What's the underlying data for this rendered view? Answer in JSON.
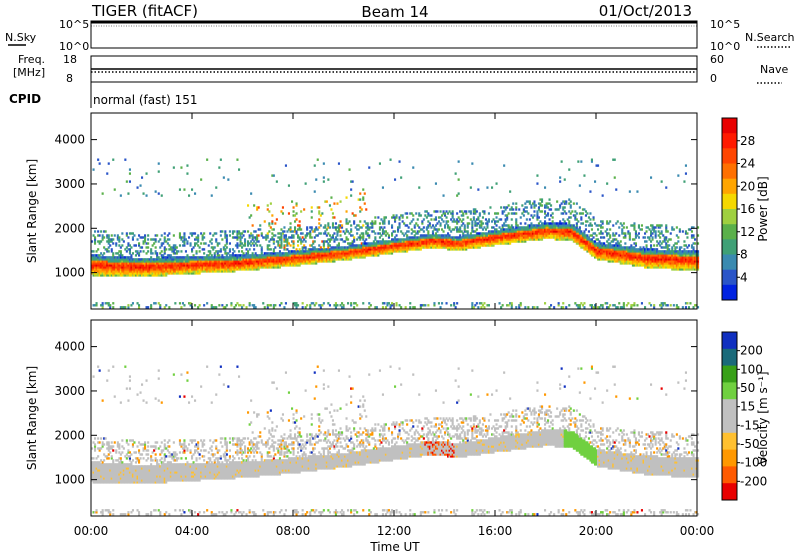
{
  "header": {
    "title": "TIGER (fitACF)",
    "beam": "Beam 14",
    "date": "01/Oct/2013"
  },
  "params": {
    "nsky_label": "N.Sky",
    "nsearch_label": "N.Search",
    "noise_ticks": [
      "10^5",
      "10^0"
    ],
    "freq_label_1": "Freq.",
    "freq_label_2": "[MHz]",
    "freq_ticks": [
      "18",
      "8"
    ],
    "nave_label": "Nave",
    "nave_ticks": [
      "60",
      "0"
    ],
    "cpid_label": "CPID",
    "cpid_value": "normal (fast) 151"
  },
  "colors": {
    "power_scale": [
      "#0022e0",
      "#2a55c8",
      "#3a8ab0",
      "#3fa076",
      "#5ab04a",
      "#9fd040",
      "#f5d800",
      "#ffa500",
      "#ff7000",
      "#ff4500",
      "#ff1a00",
      "#e80000"
    ],
    "velocity_scale": [
      "#e80000",
      "#ff5a00",
      "#ff9800",
      "#ffc030",
      "#c0c0c0",
      "#c0c0c0",
      "#70d040",
      "#38a018",
      "#1a6a7a",
      "#1030c0"
    ]
  },
  "chart_data": [
    {
      "type": "heatmap",
      "name": "power",
      "ylabel": "Slant Range [km]",
      "ylim": [
        180,
        4600
      ],
      "y_ticks": [
        "1000",
        "2000",
        "3000",
        "4000"
      ],
      "xlim": [
        0,
        24
      ],
      "x_ticks": [
        "00:00",
        "04:00",
        "08:00",
        "12:00",
        "16:00",
        "20:00",
        "00:00"
      ],
      "colorbar": {
        "label": "Power [dB]",
        "ticks": [
          "4",
          "8",
          "12",
          "16",
          "20",
          "24",
          "28"
        ],
        "range": [
          0,
          32
        ]
      },
      "main_echo_band_center_km": [
        [
          0,
          1150
        ],
        [
          2,
          1100
        ],
        [
          4,
          1150
        ],
        [
          6,
          1200
        ],
        [
          8,
          1300
        ],
        [
          10,
          1420
        ],
        [
          12,
          1580
        ],
        [
          13.5,
          1700
        ],
        [
          14.5,
          1640
        ],
        [
          16,
          1770
        ],
        [
          18,
          1920
        ],
        [
          19,
          1900
        ],
        [
          20,
          1470
        ],
        [
          22,
          1300
        ],
        [
          24,
          1250
        ]
      ]
    },
    {
      "type": "heatmap",
      "name": "velocity",
      "ylabel": "Slant Range [km]",
      "ylim": [
        180,
        4600
      ],
      "y_ticks": [
        "1000",
        "2000",
        "3000",
        "4000"
      ],
      "xlim": [
        0,
        24
      ],
      "x_ticks": [
        "00:00",
        "04:00",
        "08:00",
        "12:00",
        "16:00",
        "20:00",
        "00:00"
      ],
      "xlabel": "Time UT",
      "colorbar": {
        "label": "Velocity [m s⁻¹]",
        "ticks": [
          "200",
          "100",
          "50",
          "15",
          "-15",
          "-50",
          "-100",
          "-200"
        ],
        "range": [
          -250,
          250
        ]
      }
    }
  ]
}
